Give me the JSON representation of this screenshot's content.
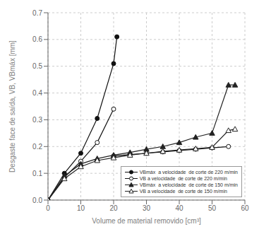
{
  "chart_data": {
    "type": "line",
    "xlabel": "Volume de material removido [cm³]",
    "ylabel": "Desgaste face de saída, VB, VBmáx [mm]",
    "xlim": [
      0,
      60
    ],
    "ylim": [
      0,
      0.7
    ],
    "xticks": [
      0,
      10,
      20,
      30,
      40,
      50,
      60
    ],
    "yticks": [
      {
        "value": 0,
        "label": "0.0"
      },
      0.1,
      0.2,
      0.3,
      0.4,
      0.5,
      0.6,
      0.7
    ],
    "grid": true,
    "legend": "lower right",
    "series": [
      {
        "name": "VBmáx  a velocidade  de corte de 220 m/min",
        "color": "#111111",
        "marker": "circle",
        "line_style": "solid",
        "x": [
          0,
          5,
          10,
          15,
          20,
          21
        ],
        "values": [
          0,
          0.1,
          0.175,
          0.305,
          0.51,
          0.61
        ]
      },
      {
        "name": "VB a velocidade  de corte de 220 m/min",
        "color": "#111111",
        "marker": "open_circle",
        "line_style": "solid",
        "x": [
          0,
          5,
          10,
          15,
          20,
          20,
          20,
          25,
          30,
          35,
          40,
          45,
          50,
          55
        ],
        "values": [
          0,
          0.085,
          0.145,
          0.215,
          0.34,
          null,
          0.165,
          0.17,
          0.175,
          0.18,
          0.185,
          0.19,
          0.195,
          0.2
        ]
      },
      {
        "name": "VBmáx  a velocidade  de corte de 150 m/min",
        "color": "#222222",
        "marker": "triangle",
        "line_style": "solid",
        "x": [
          0,
          5,
          10,
          15,
          20,
          25,
          30,
          35,
          40,
          45,
          50,
          55,
          57
        ],
        "values": [
          0,
          0.09,
          0.135,
          0.155,
          0.168,
          0.178,
          0.19,
          0.2,
          0.215,
          0.235,
          0.25,
          0.43,
          0.43
        ]
      },
      {
        "name": "VB a velocidade  de corte de 150 m/min",
        "color": "#222222",
        "marker": "open_triangle",
        "line_style": "solid",
        "x": [
          0,
          5,
          10,
          15,
          20,
          25,
          30,
          35,
          40,
          45,
          50,
          55,
          57
        ],
        "values": [
          0,
          0.08,
          0.125,
          0.148,
          0.158,
          0.168,
          0.175,
          0.182,
          0.187,
          0.192,
          0.197,
          0.26,
          0.265
        ]
      }
    ]
  }
}
